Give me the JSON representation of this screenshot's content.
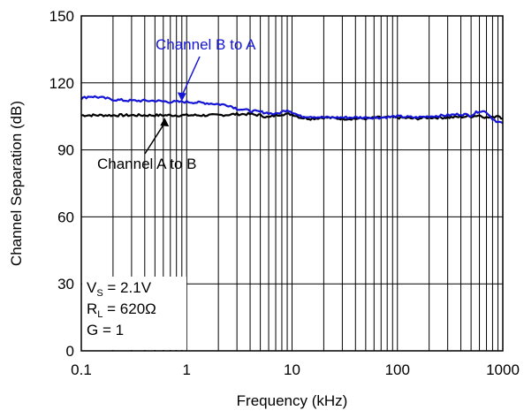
{
  "chart_data": {
    "type": "line",
    "title": "",
    "xlabel": "Frequency (kHz)",
    "ylabel": "Channel Separation (dB)",
    "x_scale": "log",
    "xlim": [
      0.1,
      1000
    ],
    "ylim": [
      0,
      150
    ],
    "x_ticks": [
      "0.1",
      "1",
      "10",
      "100",
      "1000"
    ],
    "y_ticks": [
      "0",
      "30",
      "60",
      "90",
      "120",
      "150"
    ],
    "grid": true,
    "series": [
      {
        "name": "Channel B to A",
        "color": "#1515d6",
        "x": [
          0.1,
          0.12,
          0.15,
          0.2,
          0.3,
          0.5,
          0.7,
          1,
          1.5,
          2,
          2.5,
          3,
          4,
          5,
          6,
          7,
          8,
          9,
          10,
          12,
          15,
          20,
          30,
          50,
          70,
          100,
          150,
          200,
          300,
          400,
          500,
          600,
          700,
          800,
          900,
          1000
        ],
        "y": [
          113,
          114,
          113.5,
          112.5,
          112,
          112,
          111.5,
          111.5,
          111,
          110.5,
          110,
          108.5,
          107.5,
          107,
          106.5,
          106,
          107,
          108,
          107,
          105,
          105,
          104.5,
          104.5,
          104.5,
          104.5,
          105,
          104.5,
          105,
          105.5,
          106,
          105.5,
          107.5,
          107,
          104,
          102.5,
          102
        ]
      },
      {
        "name": "Channel A to B",
        "color": "#000000",
        "x": [
          0.1,
          0.15,
          0.2,
          0.3,
          0.5,
          0.7,
          1,
          1.5,
          2,
          3,
          4,
          5,
          6,
          7,
          8,
          10,
          12,
          15,
          20,
          30,
          50,
          70,
          100,
          150,
          200,
          300,
          500,
          600,
          700,
          800,
          900,
          1000
        ],
        "y": [
          105.5,
          105.5,
          105.5,
          105.5,
          105.5,
          105.5,
          105.5,
          105.5,
          105.5,
          106,
          106,
          105.5,
          104.5,
          105.5,
          106,
          106,
          104.5,
          104,
          104.5,
          104,
          104,
          104.5,
          104.5,
          104,
          104.5,
          104.5,
          105,
          105.5,
          104.5,
          104.5,
          105.5,
          104
        ]
      }
    ],
    "annotations": [
      {
        "text": "Channel B to A",
        "color": "#1515d6",
        "points_to": {
          "x": 0.9,
          "y": 111
        }
      },
      {
        "text": "Channel A to B",
        "color": "#000000",
        "points_to": {
          "x": 0.55,
          "y": 106
        }
      }
    ],
    "conditions": {
      "vs": {
        "sym": "V",
        "sub": "S",
        "rest": " = 2.1V"
      },
      "rl": {
        "sym": "R",
        "sub": "L",
        "rest": " = 620Ω"
      },
      "g": "G = 1"
    }
  }
}
